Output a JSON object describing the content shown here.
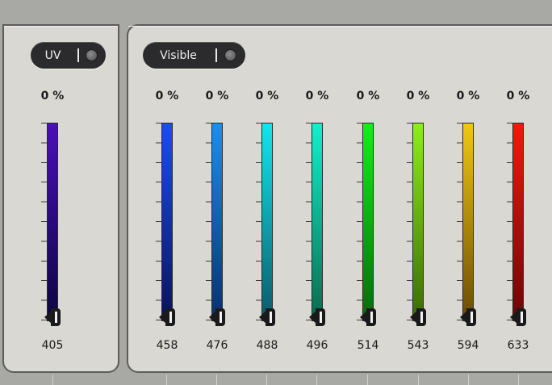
{
  "uv": {
    "toggle_label": "UV",
    "channels": [
      {
        "percent": "0 %",
        "wavelength": "405",
        "color_top": "#4b0fb8",
        "color_bottom": "#0a0640",
        "level": 0
      }
    ]
  },
  "visible": {
    "toggle_label": "Visible",
    "channels": [
      {
        "percent": "0 %",
        "wavelength": "458",
        "color_top": "#1a4df0",
        "color_bottom": "#0a1260",
        "level": 0
      },
      {
        "percent": "0 %",
        "wavelength": "476",
        "color_top": "#1a8ff0",
        "color_bottom": "#0a2e6e",
        "level": 0
      },
      {
        "percent": "0 %",
        "wavelength": "488",
        "color_top": "#12e6f0",
        "color_bottom": "#0a5a6a",
        "level": 0
      },
      {
        "percent": "0 %",
        "wavelength": "496",
        "color_top": "#12f0cc",
        "color_bottom": "#0a6a4c",
        "level": 0
      },
      {
        "percent": "0 %",
        "wavelength": "514",
        "color_top": "#12f01a",
        "color_bottom": "#066a0a",
        "level": 0
      },
      {
        "percent": "0 %",
        "wavelength": "543",
        "color_top": "#8cf012",
        "color_bottom": "#3a6a06",
        "level": 0
      },
      {
        "percent": "0 %",
        "wavelength": "594",
        "color_top": "#f0c812",
        "color_bottom": "#6a4a06",
        "level": 0
      },
      {
        "percent": "0 %",
        "wavelength": "633",
        "color_top": "#f01a0a",
        "color_bottom": "#6a0606",
        "level": 0
      }
    ]
  }
}
